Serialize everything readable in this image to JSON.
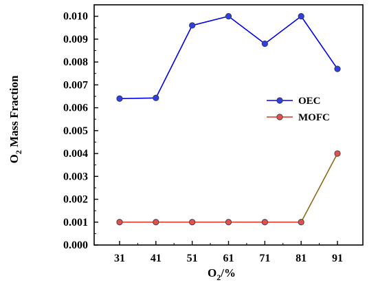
{
  "chart_data": {
    "type": "line",
    "x": [
      31,
      41,
      51,
      61,
      71,
      81,
      91
    ],
    "categories": [
      "31",
      "41",
      "51",
      "61",
      "71",
      "81",
      "91"
    ],
    "xlabel": {
      "main": "O",
      "sub": "2",
      "rest": "/%"
    },
    "ylabel": {
      "main": "O",
      "sub": "2",
      "rest": " Mass Fraction"
    },
    "ylim": [
      0.0,
      0.0105
    ],
    "yticks": [
      "0.000",
      "0.001",
      "0.002",
      "0.003",
      "0.004",
      "0.005",
      "0.006",
      "0.007",
      "0.008",
      "0.009",
      "0.010"
    ],
    "grid": false,
    "legend_position": "right-middle",
    "series": [
      {
        "name": "OEC",
        "color": "#0000ee",
        "marker_color": "#3040e0",
        "values": [
          0.0064,
          0.00643,
          0.0096,
          0.01,
          0.0088,
          0.01,
          0.0077
        ]
      },
      {
        "name": "MOFC",
        "color": "#e03020",
        "marker_color": "#e05050",
        "values": [
          0.001,
          0.001,
          0.001,
          0.001,
          0.001,
          0.001,
          0.004
        ],
        "last_segment_color": "#8b6a1a"
      }
    ]
  }
}
